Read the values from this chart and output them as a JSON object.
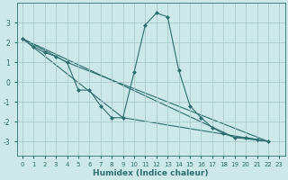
{
  "xlabel": "Humidex (Indice chaleur)",
  "background_color": "#cde8e8",
  "grid_color": "#aacccc",
  "line_color": "#2d6e6e",
  "xlim": [
    -0.5,
    23.5
  ],
  "ylim": [
    -3.7,
    4.0
  ],
  "yticks": [
    -3,
    -2,
    -1,
    0,
    1,
    2,
    3
  ],
  "xticks": [
    0,
    1,
    2,
    3,
    4,
    5,
    6,
    7,
    8,
    9,
    10,
    11,
    12,
    13,
    14,
    15,
    16,
    17,
    18,
    19,
    20,
    21,
    22,
    23
  ],
  "series1_x": [
    0,
    1,
    2,
    3,
    4,
    5,
    6,
    7,
    8,
    9,
    10,
    11,
    12,
    13,
    14,
    15,
    16,
    17,
    18,
    19,
    20,
    21,
    22
  ],
  "series1_y": [
    2.2,
    1.8,
    1.5,
    1.3,
    1.0,
    -0.4,
    -0.4,
    -1.2,
    -1.8,
    -1.8,
    0.5,
    2.9,
    3.5,
    3.3,
    0.6,
    -1.2,
    -1.8,
    -2.3,
    -2.6,
    -2.8,
    -2.8,
    -2.9,
    -3.0
  ],
  "trend1_x": [
    0,
    22
  ],
  "trend1_y": [
    2.2,
    -3.0
  ],
  "trend2_x": [
    0,
    4,
    22
  ],
  "trend2_y": [
    2.2,
    1.0,
    -3.0
  ],
  "trend3_x": [
    0,
    9,
    22
  ],
  "trend3_y": [
    2.2,
    -1.8,
    -3.0
  ],
  "trend4_x": [
    0,
    19,
    22
  ],
  "trend4_y": [
    2.2,
    -2.8,
    -3.0
  ]
}
